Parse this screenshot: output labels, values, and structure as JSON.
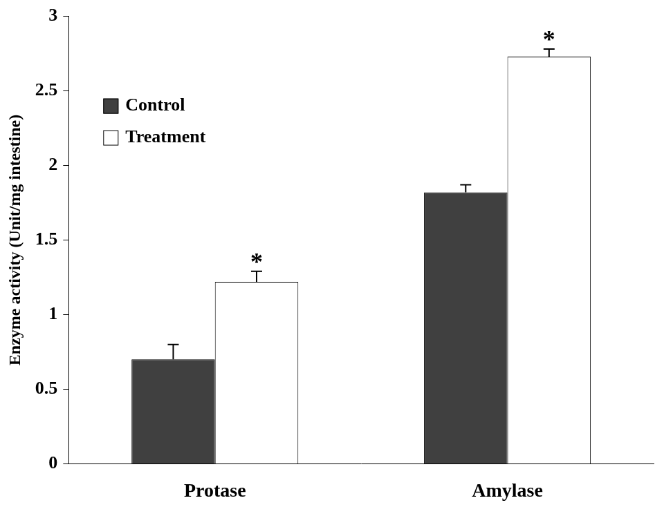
{
  "chart_data": {
    "type": "bar",
    "y_label": "Enzyme activity (Unit/mg intestine)",
    "categories": [
      "Protase",
      "Amylase"
    ],
    "series": [
      {
        "name": "Control",
        "color": "#404040",
        "values": [
          0.7,
          1.82
        ],
        "errors": [
          0.1,
          0.05
        ]
      },
      {
        "name": "Treatment",
        "color": "#ffffff",
        "values": [
          1.22,
          2.73
        ],
        "errors": [
          0.07,
          0.05
        ]
      }
    ],
    "ylim": [
      0,
      3
    ],
    "yticks": [
      0,
      0.5,
      1,
      1.5,
      2,
      2.5,
      3
    ],
    "grid": false,
    "legend": "upper left",
    "annotations": [
      {
        "text": "*",
        "category": "Protase",
        "series": "Treatment"
      },
      {
        "text": "*",
        "category": "Amylase",
        "series": "Treatment"
      }
    ]
  }
}
